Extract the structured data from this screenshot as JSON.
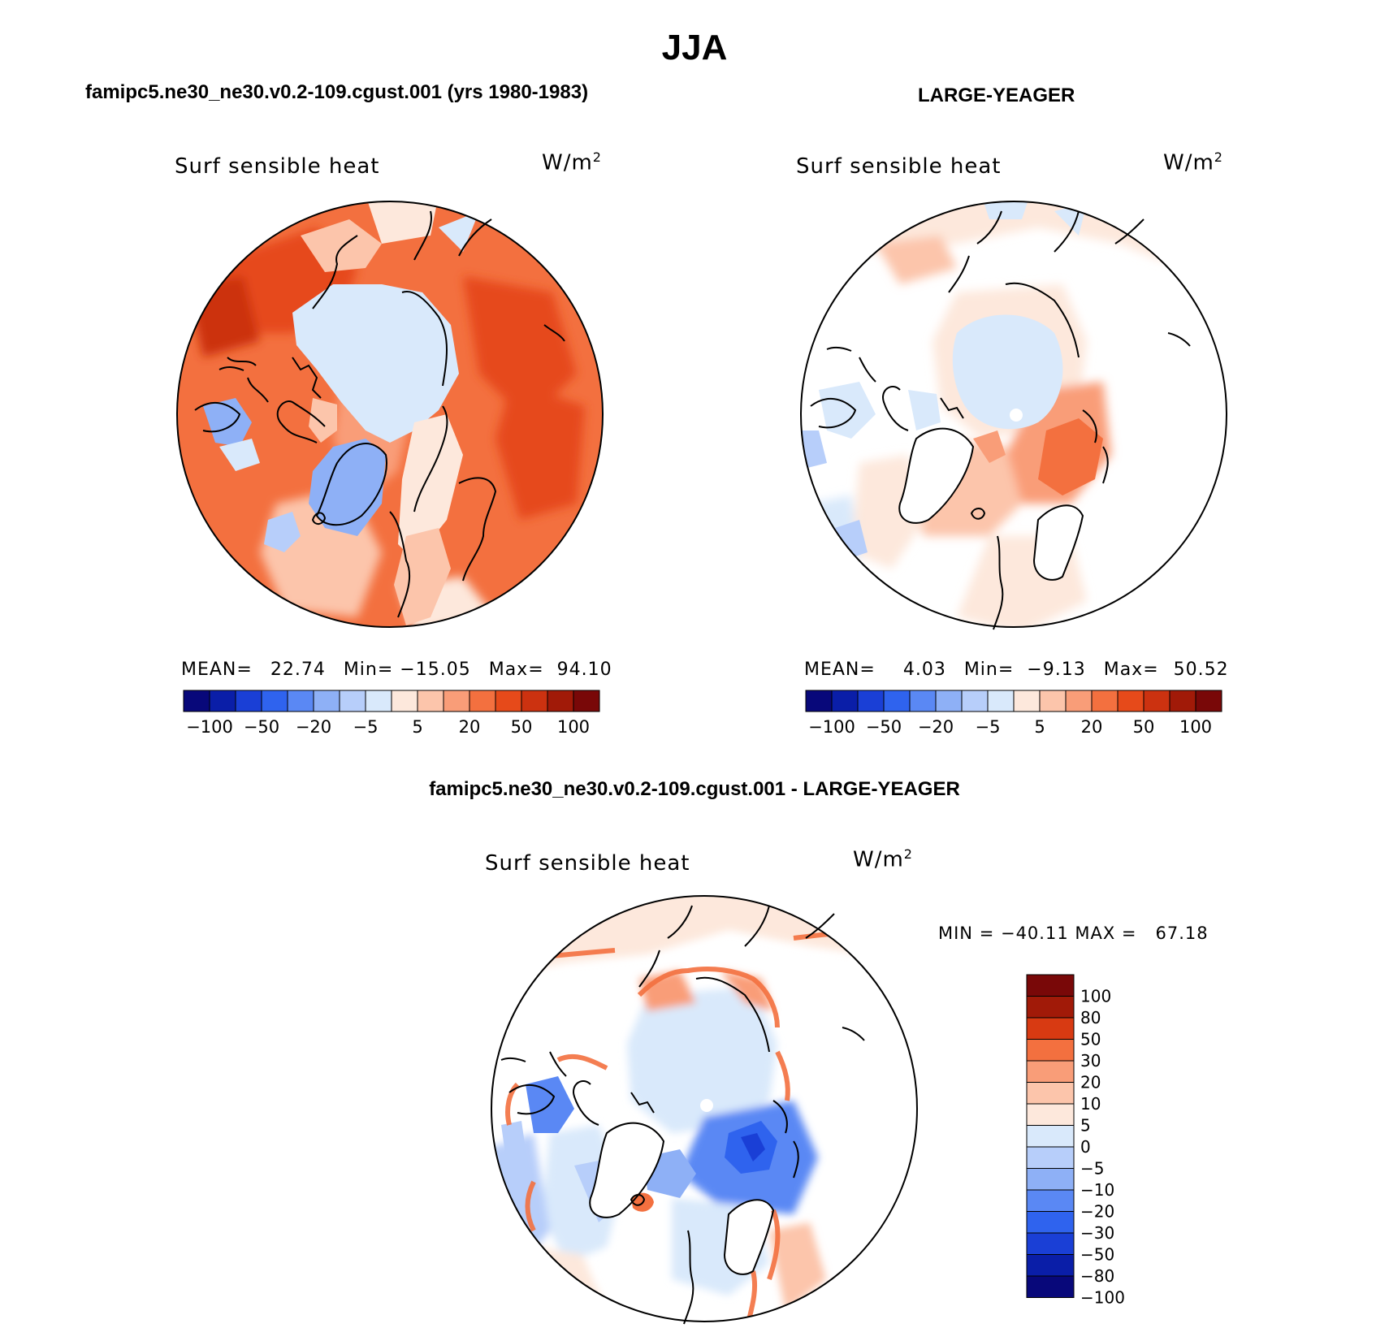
{
  "title": "JJA",
  "panels": [
    {
      "heading": "famipc5.ne30_ne30.v0.2-109.cgust.001 (yrs 1980-1983)",
      "variable": "Surf sensible heat",
      "units_base": "W/m",
      "units_exp": "2",
      "stats": {
        "mean_label": "MEAN=",
        "mean": "22.74",
        "min_label": "Min=",
        "min": "−15.05",
        "max_label": "Max=",
        "max": "94.10"
      },
      "colorbar": {
        "colors": [
          "#08087a",
          "#0a1ea8",
          "#1a3fd6",
          "#2f63ee",
          "#5a88f4",
          "#8eb0f6",
          "#b7cefa",
          "#d9e9fb",
          "#fde8dc",
          "#fcc5ab",
          "#f99d78",
          "#f3703f",
          "#e64a1a",
          "#cc3210",
          "#a11a08",
          "#790808"
        ],
        "tick_labels": [
          "−100",
          "−50",
          "−20",
          "−5",
          "5",
          "20",
          "50",
          "100"
        ]
      }
    },
    {
      "heading": "LARGE-YEAGER",
      "variable": "Surf sensible heat",
      "units_base": "W/m",
      "units_exp": "2",
      "stats": {
        "mean_label": "MEAN=",
        "mean": "4.03",
        "min_label": "Min=",
        "min": "−9.13",
        "max_label": "Max=",
        "max": "50.52"
      },
      "colorbar": {
        "colors": [
          "#08087a",
          "#0a1ea8",
          "#1a3fd6",
          "#2f63ee",
          "#5a88f4",
          "#8eb0f6",
          "#b7cefa",
          "#d9e9fb",
          "#fde8dc",
          "#fcc5ab",
          "#f99d78",
          "#f3703f",
          "#e64a1a",
          "#cc3210",
          "#a11a08",
          "#790808"
        ],
        "tick_labels": [
          "−100",
          "−50",
          "−20",
          "−5",
          "5",
          "20",
          "50",
          "100"
        ]
      }
    },
    {
      "heading": "famipc5.ne30_ne30.v0.2-109.cgust.001 - LARGE-YEAGER",
      "variable": "Surf sensible heat",
      "units_base": "W/m",
      "units_exp": "2",
      "stats_text": "MIN = −40.11 MAX =   67.18",
      "colorbar": {
        "colors_top_to_bottom": [
          "#790808",
          "#a11a08",
          "#d83a12",
          "#f3703f",
          "#f99d78",
          "#fcc5ab",
          "#fde8dc",
          "#d9e9fb",
          "#b7cefa",
          "#8eb0f6",
          "#5a88f4",
          "#2f63ee",
          "#1a3fd6",
          "#0a1ea8",
          "#08087a"
        ],
        "tick_labels_top_to_bottom": [
          "100",
          "80",
          "50",
          "30",
          "20",
          "10",
          "5",
          "0",
          "−5",
          "−10",
          "−20",
          "−30",
          "−50",
          "−80",
          "−100"
        ]
      }
    }
  ],
  "colors": {
    "land_white": "#ffffff",
    "ocean_light_blue": "#d9e9fb",
    "coast": "#000000"
  }
}
